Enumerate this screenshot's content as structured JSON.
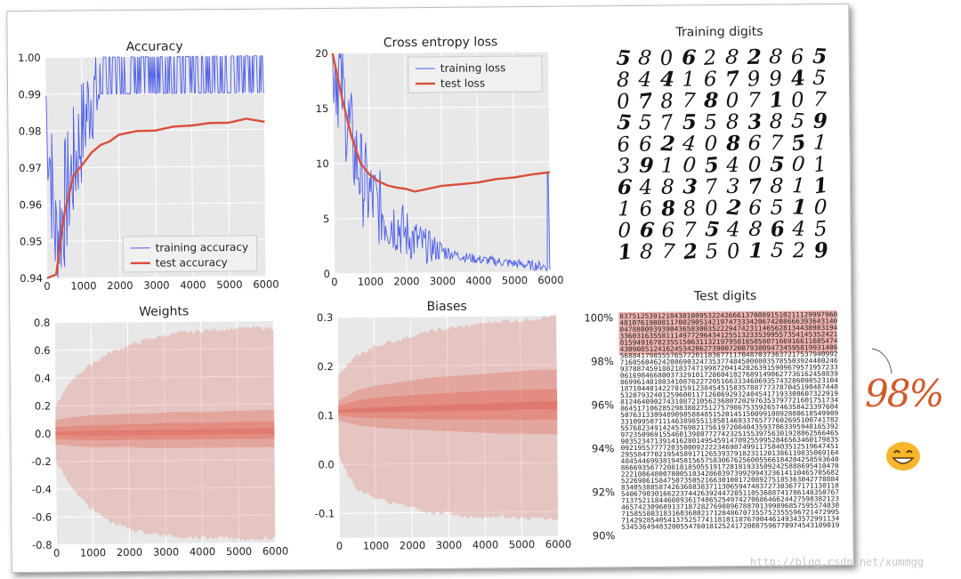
{
  "chart_data": [
    {
      "type": "line",
      "title": "Accuracy",
      "x": [
        0,
        250,
        500,
        750,
        1000,
        1250,
        1500,
        1750,
        2000,
        2500,
        3000,
        3500,
        4000,
        4500,
        5000,
        5500,
        6000
      ],
      "xlim": [
        0,
        6000
      ],
      "ylim": [
        0.94,
        1.0
      ],
      "xticks": [
        "0",
        "1000",
        "2000",
        "3000",
        "4000",
        "5000",
        "6000"
      ],
      "yticks": [
        "0.94",
        "0.95",
        "0.96",
        "0.97",
        "0.98",
        "0.99",
        "1.00"
      ],
      "series": [
        {
          "name": "training accuracy",
          "color": "#4f5fe8",
          "style": "noisy",
          "values": [
            0.99,
            0.95,
            0.96,
            0.97,
            0.98,
            0.99,
            0.99,
            1.0,
            0.99,
            1.0,
            1.0,
            1.0,
            1.0,
            1.0,
            1.0,
            1.0,
            0.99
          ]
        },
        {
          "name": "test accuracy",
          "color": "#d94f3d",
          "style": "smooth",
          "values": [
            0.94,
            0.941,
            0.958,
            0.968,
            0.971,
            0.974,
            0.976,
            0.977,
            0.979,
            0.98,
            0.98,
            0.981,
            0.981,
            0.982,
            0.982,
            0.983,
            0.982
          ]
        }
      ],
      "legend": "lower-right",
      "grid": true
    },
    {
      "type": "line",
      "title": "Cross entropy loss",
      "x": [
        0,
        250,
        500,
        750,
        1000,
        1250,
        1500,
        1750,
        2000,
        2250,
        2500,
        3000,
        3500,
        4000,
        4500,
        5000,
        5500,
        6000
      ],
      "xlim": [
        0,
        6000
      ],
      "ylim": [
        0,
        20
      ],
      "xticks": [
        "0",
        "1000",
        "2000",
        "3000",
        "4000",
        "5000",
        "6000"
      ],
      "yticks": [
        "0",
        "5",
        "10",
        "15",
        "20"
      ],
      "series": [
        {
          "name": "training loss",
          "color": "#4f5fe8",
          "style": "noisy",
          "values": [
            20,
            17,
            12,
            9,
            7,
            6,
            5,
            4.5,
            3.5,
            3,
            2.5,
            2,
            1.5,
            1.2,
            1,
            0.8,
            0.6,
            0.5
          ]
        },
        {
          "name": "test loss",
          "color": "#d94f3d",
          "style": "smooth",
          "values": [
            20,
            16,
            12.5,
            10,
            9,
            8.4,
            8,
            7.8,
            7.6,
            7.4,
            7.6,
            7.9,
            8.0,
            8.2,
            8.4,
            8.6,
            8.8,
            9.0
          ]
        }
      ],
      "legend": "top-right",
      "grid": true
    },
    {
      "type": "area",
      "title": "Weights",
      "x": [
        0,
        250,
        500,
        1000,
        1500,
        2000,
        2500,
        3000,
        3500,
        4000,
        4500,
        5000,
        5500,
        6000
      ],
      "xlim": [
        0,
        6000
      ],
      "ylim": [
        -0.8,
        0.8
      ],
      "xticks": [
        "0",
        "1000",
        "2000",
        "3000",
        "4000",
        "5000",
        "6000"
      ],
      "yticks": [
        "0.8",
        "0.6",
        "0.4",
        "0.2",
        "0.0",
        "-0.2",
        "-0.4",
        "-0.6",
        "-0.8"
      ],
      "bands": [
        {
          "upper": [
            0.2,
            0.3,
            0.4,
            0.5,
            0.58,
            0.63,
            0.67,
            0.7,
            0.72,
            0.73,
            0.74,
            0.745,
            0.75,
            0.75
          ],
          "lower": [
            -0.2,
            -0.3,
            -0.42,
            -0.55,
            -0.64,
            -0.69,
            -0.72,
            -0.74,
            -0.75,
            -0.76,
            -0.76,
            -0.77,
            -0.77,
            -0.77
          ],
          "opacity": 0.28
        },
        {
          "upper": [
            0.1,
            0.11,
            0.12,
            0.13,
            0.135,
            0.14,
            0.14,
            0.145,
            0.15,
            0.15,
            0.15,
            0.155,
            0.155,
            0.16
          ],
          "lower": [
            -0.08,
            -0.08,
            -0.09,
            -0.1,
            -0.1,
            -0.1,
            -0.11,
            -0.11,
            -0.11,
            -0.11,
            -0.11,
            -0.11,
            -0.11,
            -0.11
          ],
          "opacity": 0.35
        },
        {
          "upper": [
            0.05,
            0.05,
            0.055,
            0.06,
            0.06,
            0.065,
            0.065,
            0.07,
            0.07,
            0.07,
            0.07,
            0.075,
            0.075,
            0.075
          ],
          "lower": [
            -0.04,
            -0.04,
            -0.045,
            -0.05,
            -0.05,
            -0.05,
            -0.05,
            -0.05,
            -0.05,
            -0.05,
            -0.05,
            -0.05,
            -0.05,
            -0.05
          ],
          "opacity": 0.45
        },
        {
          "upper": [
            0.015,
            0.015,
            0.015,
            0.02,
            0.02,
            0.02,
            0.02,
            0.02,
            0.02,
            0.025,
            0.025,
            0.025,
            0.025,
            0.025
          ],
          "lower": [
            -0.01,
            -0.01,
            -0.01,
            -0.015,
            -0.015,
            -0.015,
            -0.015,
            -0.015,
            -0.015,
            -0.015,
            -0.015,
            -0.015,
            -0.015,
            -0.015
          ],
          "opacity": 0.55
        }
      ],
      "color": "#e06c5f",
      "grid": true
    },
    {
      "type": "area",
      "title": "Biases",
      "x": [
        0,
        250,
        500,
        1000,
        1500,
        2000,
        2500,
        3000,
        3500,
        4000,
        4500,
        5000,
        5500,
        6000
      ],
      "xlim": [
        0,
        6000
      ],
      "ylim": [
        -0.15,
        0.3
      ],
      "xticks": [
        "0",
        "1000",
        "2000",
        "3000",
        "4000",
        "5000",
        "6000"
      ],
      "yticks": [
        "0.3",
        "0.2",
        "0.1",
        "0.0",
        "-0.1"
      ],
      "bands": [
        {
          "upper": [
            0.18,
            0.2,
            0.22,
            0.24,
            0.25,
            0.26,
            0.27,
            0.275,
            0.28,
            0.285,
            0.29,
            0.29,
            0.295,
            0.3
          ],
          "lower": [
            0.02,
            -0.02,
            -0.05,
            -0.07,
            -0.08,
            -0.09,
            -0.1,
            -0.1,
            -0.11,
            -0.11,
            -0.11,
            -0.115,
            -0.115,
            -0.115
          ],
          "opacity": 0.28
        },
        {
          "upper": [
            0.13,
            0.14,
            0.15,
            0.16,
            0.165,
            0.17,
            0.175,
            0.178,
            0.18,
            0.182,
            0.185,
            0.187,
            0.19,
            0.19
          ],
          "lower": [
            0.09,
            0.085,
            0.08,
            0.075,
            0.072,
            0.07,
            0.068,
            0.066,
            0.064,
            0.062,
            0.06,
            0.06,
            0.058,
            0.058
          ],
          "opacity": 0.35
        },
        {
          "upper": [
            0.12,
            0.125,
            0.13,
            0.135,
            0.138,
            0.14,
            0.142,
            0.144,
            0.146,
            0.147,
            0.148,
            0.149,
            0.15,
            0.15
          ],
          "lower": [
            0.1,
            0.098,
            0.096,
            0.094,
            0.093,
            0.092,
            0.091,
            0.09,
            0.09,
            0.089,
            0.089,
            0.088,
            0.088,
            0.088
          ],
          "opacity": 0.45
        },
        {
          "upper": [
            0.112,
            0.113,
            0.114,
            0.116,
            0.117,
            0.118,
            0.119,
            0.12,
            0.121,
            0.122,
            0.123,
            0.124,
            0.125,
            0.125
          ],
          "lower": [
            0.106,
            0.106,
            0.106,
            0.106,
            0.106,
            0.107,
            0.107,
            0.107,
            0.108,
            0.108,
            0.108,
            0.109,
            0.109,
            0.109
          ],
          "opacity": 0.6
        }
      ],
      "color": "#e06c5f",
      "grid": true
    }
  ],
  "training_digits": {
    "title": "Training digits",
    "rows": [
      "5806282865",
      "8441679945",
      "0787807107",
      "5575583859",
      "6624086751",
      "3910540501",
      "6483737811",
      "1688026510",
      "0667548645",
      "1872501529"
    ]
  },
  "test_digits": {
    "title": "Test digits",
    "yticks": [
      "100%",
      "98%",
      "96%",
      "94%",
      "92%",
      "90%"
    ],
    "highlight": "misclassified rows"
  },
  "annotation": {
    "text": "98%",
    "emoji": "grinning-face"
  },
  "watermark": "http://blog.csdn.net/xummgg"
}
